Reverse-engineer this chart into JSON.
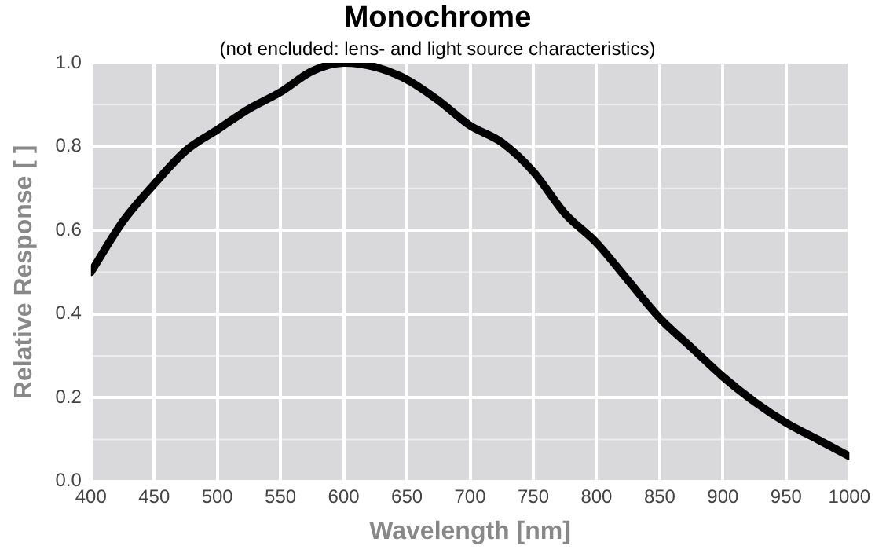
{
  "chart_data": {
    "type": "line",
    "title": "Monochrome",
    "subtitle": "(not encluded: lens- and light source characteristics)",
    "xlabel": "Wavelength [nm]",
    "ylabel": "Relative Response [ ]",
    "x": [
      400,
      425,
      450,
      475,
      500,
      525,
      550,
      575,
      600,
      625,
      650,
      675,
      700,
      725,
      750,
      775,
      800,
      825,
      850,
      875,
      900,
      925,
      950,
      975,
      1000
    ],
    "series": [
      {
        "color": "#000000",
        "values": [
          0.5,
          0.62,
          0.71,
          0.79,
          0.84,
          0.89,
          0.93,
          0.98,
          1.0,
          0.99,
          0.96,
          0.91,
          0.85,
          0.81,
          0.74,
          0.64,
          0.57,
          0.48,
          0.39,
          0.32,
          0.25,
          0.19,
          0.14,
          0.1,
          0.06
        ]
      }
    ],
    "xlim": [
      400,
      1000
    ],
    "xticks": [
      400,
      450,
      500,
      550,
      600,
      650,
      700,
      750,
      800,
      850,
      900,
      950,
      1000
    ],
    "ylim": [
      0,
      1
    ],
    "yticks": [
      {
        "value": 0,
        "label": "0.0"
      },
      {
        "value": 0.2,
        "label": "0.2"
      },
      {
        "value": 0.4,
        "label": "0.4"
      },
      {
        "value": 0.6,
        "label": "0.6"
      },
      {
        "value": 0.8,
        "label": "0.8"
      },
      {
        "value": 1,
        "label": "1.0"
      }
    ],
    "grid": true,
    "legend": false,
    "marker": "none",
    "line_style": "solid"
  }
}
